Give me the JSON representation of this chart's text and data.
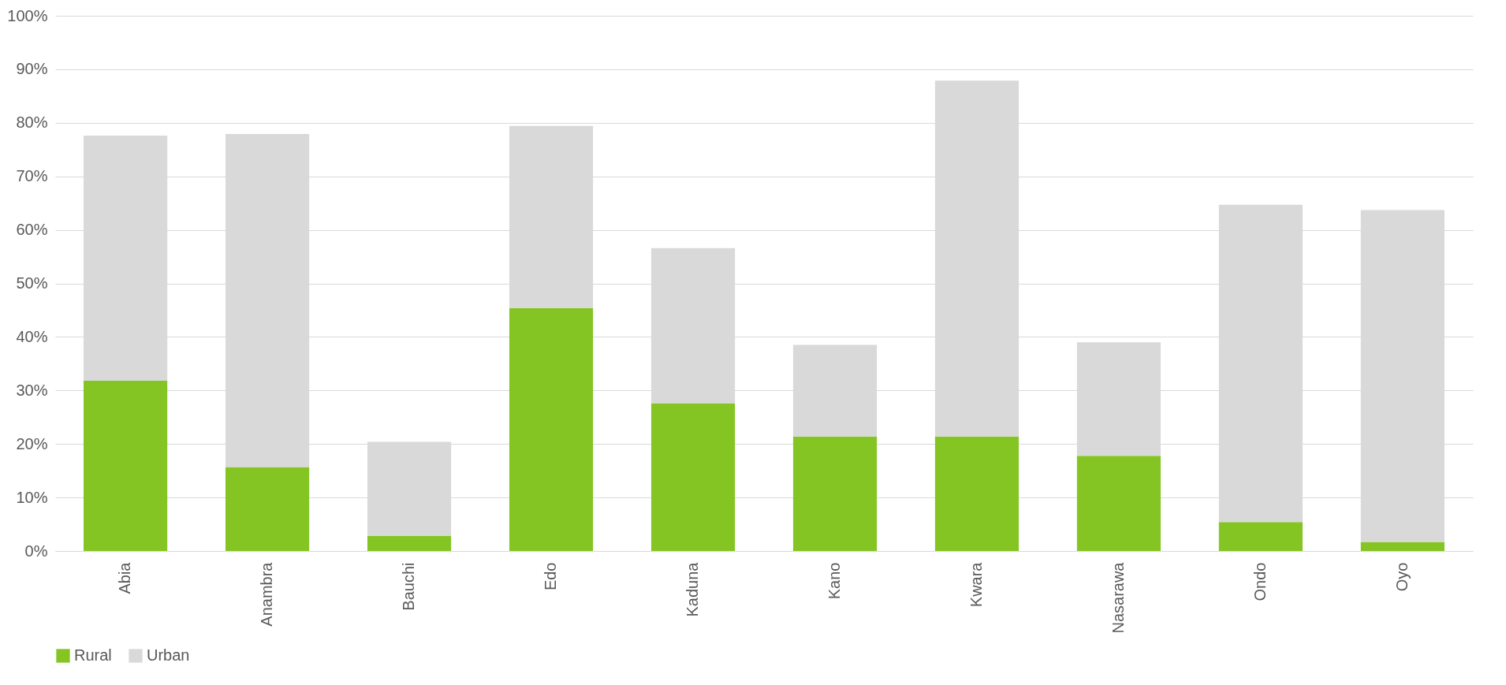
{
  "chart_data": {
    "type": "bar",
    "stacked": true,
    "categories": [
      "Abia",
      "Anambra",
      "Bauchi",
      "Edo",
      "Kaduna",
      "Kano",
      "Kwara",
      "Nasarawa",
      "Ondo",
      "Oyo"
    ],
    "series": [
      {
        "name": "Rural",
        "color": "#84c524",
        "values": [
          31.8,
          15.7,
          2.8,
          45.4,
          27.6,
          21.4,
          21.4,
          17.8,
          5.4,
          1.7
        ]
      },
      {
        "name": "Urban",
        "color": "#d9d9d9",
        "values": [
          45.8,
          62.2,
          17.6,
          34.0,
          29.0,
          17.1,
          66.5,
          21.2,
          59.3,
          62.0
        ]
      }
    ],
    "ylim": [
      0,
      100
    ],
    "yticks": [
      {
        "value": 0,
        "label": "0%"
      },
      {
        "value": 10,
        "label": "10%"
      },
      {
        "value": 20,
        "label": "20%"
      },
      {
        "value": 30,
        "label": "30%"
      },
      {
        "value": 40,
        "label": "40%"
      },
      {
        "value": 50,
        "label": "50%"
      },
      {
        "value": 60,
        "label": "60%"
      },
      {
        "value": 70,
        "label": "70%"
      },
      {
        "value": 80,
        "label": "80%"
      },
      {
        "value": 90,
        "label": "90%"
      },
      {
        "value": 100,
        "label": "100%"
      }
    ],
    "grid": "y",
    "legend": "bottom"
  }
}
